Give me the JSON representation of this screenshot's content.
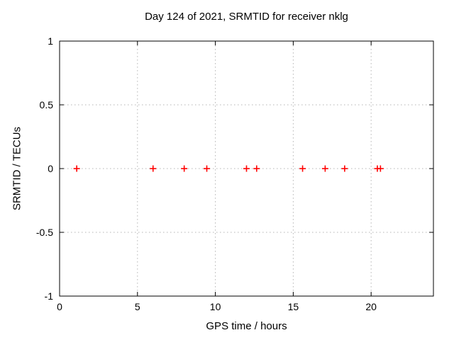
{
  "chart_data": {
    "type": "scatter",
    "title": "Day 124 of 2021, SRMTID for receiver nklg",
    "xlabel": "GPS time / hours",
    "ylabel": "SRMTID / TECUs",
    "xlim": [
      0,
      24
    ],
    "ylim": [
      -1,
      1
    ],
    "xticks": [
      0,
      5,
      10,
      15,
      20
    ],
    "yticks": [
      -1,
      -0.5,
      0,
      0.5,
      1
    ],
    "grid": true,
    "legend": "none",
    "series": [
      {
        "name": "SRMTID",
        "marker": "plus",
        "color": "#ff0000",
        "points": [
          [
            1.1,
            0
          ],
          [
            6.0,
            0
          ],
          [
            8.0,
            0
          ],
          [
            9.45,
            0
          ],
          [
            12.0,
            0
          ],
          [
            12.65,
            0
          ],
          [
            15.6,
            0
          ],
          [
            17.05,
            0
          ],
          [
            18.3,
            0
          ],
          [
            20.4,
            0
          ],
          [
            20.6,
            0
          ]
        ]
      }
    ]
  },
  "colors": {
    "background": "#ffffff",
    "axis": "#000000",
    "grid": "#b4b4b4",
    "marker": "#ff0000",
    "text": "#000000"
  }
}
